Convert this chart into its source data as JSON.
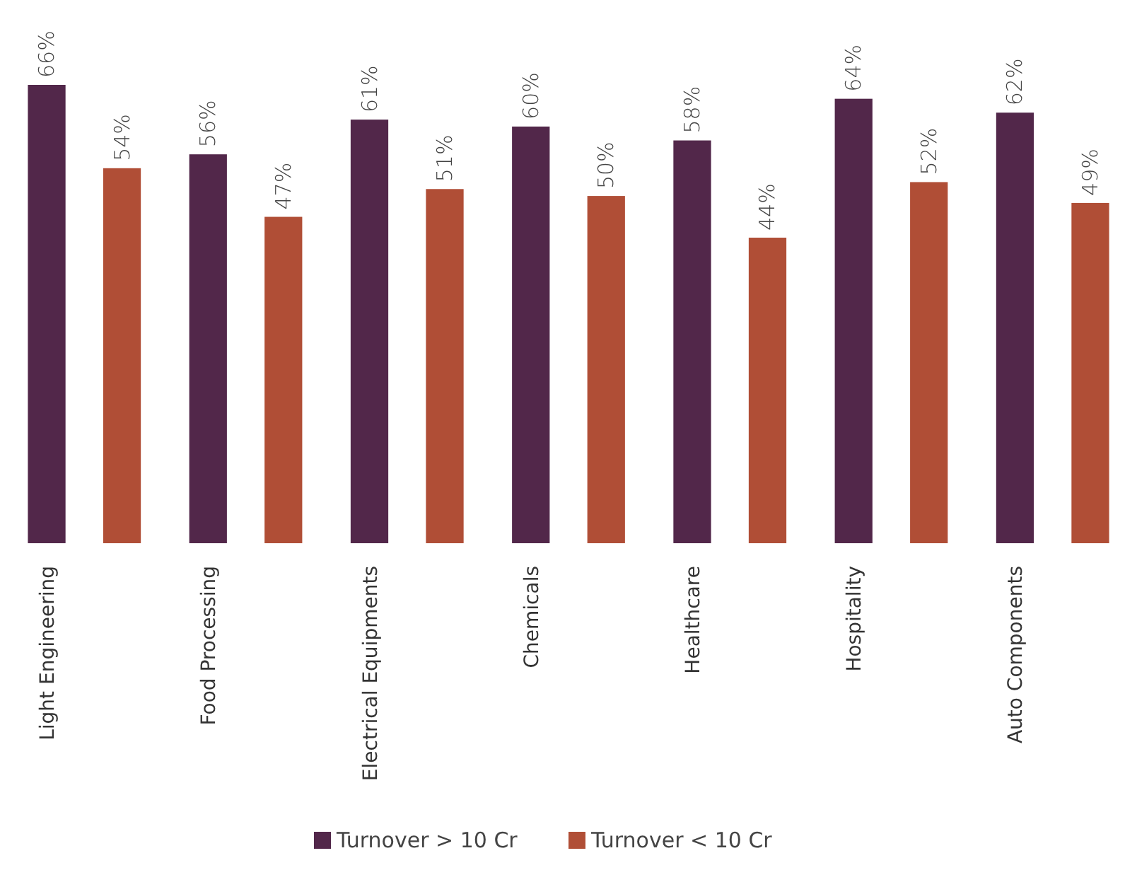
{
  "chart_data": {
    "type": "bar",
    "categories": [
      "Light Engineering",
      "Food Processing",
      "Electrical Equipments",
      "Chemicals",
      "Healthcare",
      "Hospitality",
      "Auto Components"
    ],
    "series": [
      {
        "name": "Turnover > 10 Cr",
        "color": "#52274a",
        "values": [
          66,
          56,
          61,
          60,
          58,
          64,
          62
        ],
        "value_labels": [
          "66%",
          "56%",
          "61%",
          "60%",
          "58%",
          "64%",
          "62%"
        ]
      },
      {
        "name": "Turnover < 10 Cr",
        "color": "#b04e36",
        "values": [
          54,
          47,
          51,
          50,
          44,
          52,
          49
        ],
        "value_labels": [
          "54%",
          "47%",
          "51%",
          "50%",
          "44%",
          "52%",
          "49%"
        ]
      }
    ],
    "legend": "bottom",
    "grid": false
  }
}
